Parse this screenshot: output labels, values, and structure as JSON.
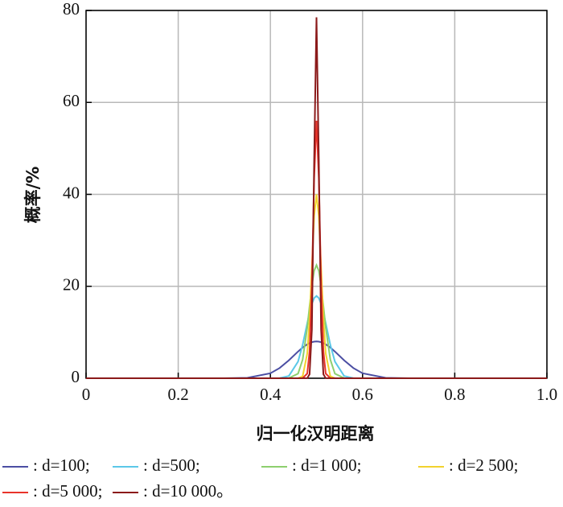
{
  "chart_data": {
    "type": "line",
    "xlabel": "归一化汉明距离",
    "ylabel": "概率/%",
    "x": [
      0,
      0.1,
      0.2,
      0.3,
      0.35,
      0.4,
      0.42,
      0.44,
      0.46,
      0.47,
      0.48,
      0.485,
      0.49,
      0.495,
      0.5,
      0.505,
      0.51,
      0.515,
      0.52,
      0.53,
      0.54,
      0.56,
      0.58,
      0.6,
      0.65,
      0.7,
      0.8,
      0.9,
      1.0
    ],
    "series": [
      {
        "name": ": d=100;",
        "color": "#4b4ea3",
        "values": [
          0,
          0,
          0,
          0,
          0.09,
          1.08,
          2.22,
          3.89,
          5.81,
          6.68,
          7.38,
          7.65,
          7.84,
          7.96,
          8,
          7.96,
          7.84,
          7.65,
          7.38,
          6.68,
          5.81,
          3.89,
          2.22,
          1.08,
          0.09,
          0,
          0,
          0,
          0
        ]
      },
      {
        "name": ": d=500;",
        "color": "#5bc8e8",
        "values": [
          0,
          0,
          0,
          0,
          0,
          0,
          0.03,
          0.49,
          3.62,
          7.28,
          12.0,
          14.3,
          16.2,
          17.45,
          17.9,
          17.45,
          16.2,
          14.3,
          12.0,
          7.28,
          3.62,
          0.49,
          0.03,
          0,
          0,
          0,
          0,
          0,
          0
        ]
      },
      {
        "name": ": d=1 000;",
        "color": "#8dcf6e",
        "values": [
          0,
          0,
          0,
          0,
          0,
          0,
          0,
          0.02,
          1.0,
          4.06,
          11.05,
          15.7,
          20.15,
          23.4,
          24.6,
          23.4,
          20.15,
          15.7,
          11.05,
          4.06,
          1.0,
          0.02,
          0,
          0,
          0,
          0,
          0,
          0,
          0
        ]
      },
      {
        "name": ": d=2 500;",
        "color": "#f2d22e",
        "values": [
          0,
          0,
          0,
          0,
          0,
          0,
          0,
          0,
          0.01,
          0.44,
          5.41,
          13.0,
          24.3,
          35.3,
          40,
          35.3,
          24.3,
          13.0,
          5.41,
          0.44,
          0.01,
          0,
          0,
          0,
          0,
          0,
          0,
          0,
          0
        ]
      },
      {
        "name": ": d=5 000;",
        "color": "#e8332a",
        "values": [
          0,
          0,
          0,
          0,
          0,
          0,
          0,
          0,
          0,
          0.01,
          1.03,
          5.9,
          20.6,
          43.6,
          56,
          43.6,
          20.6,
          5.9,
          1.03,
          0.01,
          0,
          0,
          0,
          0,
          0,
          0,
          0,
          0,
          0
        ]
      },
      {
        "name": ": d=10 000。",
        "color": "#8b1a1a",
        "values": [
          0,
          0,
          0,
          0,
          0,
          0,
          0,
          0,
          0,
          0,
          0.03,
          0.87,
          10.6,
          47.6,
          78.5,
          47.6,
          10.6,
          0.87,
          0.03,
          0,
          0,
          0,
          0,
          0,
          0,
          0,
          0,
          0,
          0
        ]
      }
    ],
    "xlim": [
      0,
      1
    ],
    "xticks": [
      0,
      0.2,
      0.4,
      0.6,
      0.8,
      {
        "value": 1,
        "label": "1.0"
      }
    ],
    "ylim": [
      0,
      80
    ],
    "yticks": [
      0,
      20,
      40,
      60,
      80
    ],
    "grid": true
  }
}
